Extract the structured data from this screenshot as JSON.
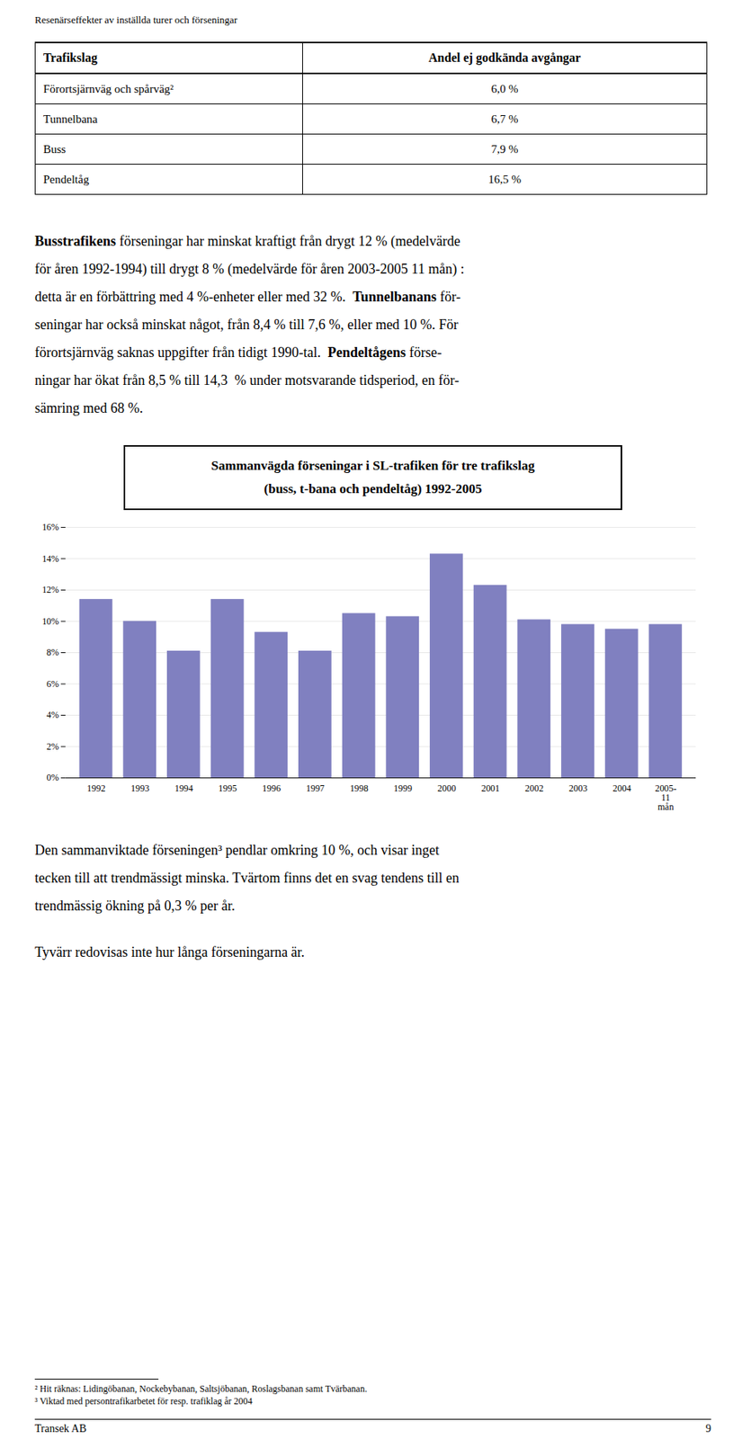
{
  "page_title": "Resenärseffekter av inställda turer och förseningar",
  "table": {
    "headers": [
      "Trafikslag",
      "Andel ej godkända avgångar"
    ],
    "rows": [
      [
        "Förortsjärnväg och spårväg²",
        "6,0 %"
      ],
      [
        "Tunnelbana",
        "6,7 %"
      ],
      [
        "Buss",
        "7,9 %"
      ],
      [
        "Pendeltåg",
        "16,5 %"
      ]
    ]
  },
  "paragraphs_before": [
    [
      [
        {
          "text": "Busstrafikens",
          "bold": true
        },
        {
          "text": " förseningar har minskat kraftigt från drygt 12 % (medelvärde",
          "bold": false
        }
      ],
      [
        {
          "text": "för åren 1992-1994) till drygt 8 % (medelvärde för åren 2003-2005 11 mån) :",
          "bold": false
        }
      ],
      [
        {
          "text": "detta är en förbättring med 4 %-enheter eller med 32 %.  ",
          "bold": false
        },
        {
          "text": "Tunnelbanans",
          "bold": true
        },
        {
          "text": " för-",
          "bold": false
        }
      ],
      [
        {
          "text": "seningar har också minskat något, från 8,4 % till 7,6 %, eller med 10 %. För",
          "bold": false
        }
      ],
      [
        {
          "text": "förortsjärnväg saknas uppgifter från tidigt 1990-tal.  ",
          "bold": false
        },
        {
          "text": "Pendeltågens",
          "bold": true
        },
        {
          "text": " förse-",
          "bold": false
        }
      ],
      [
        {
          "text": "ningar har ökat från 8,5 % till 14,3  % under motsvarande tidsperiod, en för-",
          "bold": false
        }
      ],
      [
        {
          "text": "sämring med 68 %.",
          "bold": false
        }
      ]
    ]
  ],
  "chart_data": {
    "type": "bar",
    "title": "Sammanvägda förseningar i SL-trafiken för tre trafikslag",
    "subtitle": "(buss, t-bana och pendeltåg) 1992-2005",
    "categories": [
      "1992",
      "1993",
      "1994",
      "1995",
      "1996",
      "1997",
      "1998",
      "1999",
      "2000",
      "2001",
      "2002",
      "2003",
      "2004",
      "2005-\n11\nmån"
    ],
    "values": [
      11.4,
      10.0,
      8.1,
      11.4,
      9.3,
      8.1,
      10.5,
      10.3,
      14.3,
      12.3,
      10.1,
      9.8,
      9.5,
      9.8
    ],
    "color": "#8080C0",
    "ylim": [
      0,
      16
    ],
    "yticks": [
      {
        "value": 0,
        "label": "0%"
      },
      {
        "value": 2,
        "label": "2%"
      },
      {
        "value": 4,
        "label": "4%"
      },
      {
        "value": 6,
        "label": "6%"
      },
      {
        "value": 8,
        "label": "8%"
      },
      {
        "value": 10,
        "label": "10%"
      },
      {
        "value": 12,
        "label": "12%"
      },
      {
        "value": 14,
        "label": "14%"
      },
      {
        "value": 16,
        "label": "16%"
      }
    ],
    "grid": true
  },
  "paragraphs_after": [
    [
      [
        {
          "text": "Den sammanviktade förseningen³ pendlar omkring 10 %, och visar inget",
          "bold": false
        }
      ],
      [
        {
          "text": "tecken till att trendmässigt minska. Tvärtom finns det en svag tendens till en",
          "bold": false
        }
      ],
      [
        {
          "text": "trendmässig ökning på 0,3 % per år.",
          "bold": false
        }
      ]
    ],
    [
      [
        {
          "text": "Tyvärr redovisas inte hur långa förseningarna är.",
          "bold": false
        }
      ]
    ]
  ],
  "footnotes": [
    "² Hit räknas: Lidingöbanan, Nockebybanan, Saltsjöbanan, Roslagsbanan samt Tvärbanan.",
    "³ Viktad med persontrafikarbetet för resp. trafiklag år 2004"
  ],
  "footer": {
    "left": "Transek AB",
    "right": "9"
  }
}
